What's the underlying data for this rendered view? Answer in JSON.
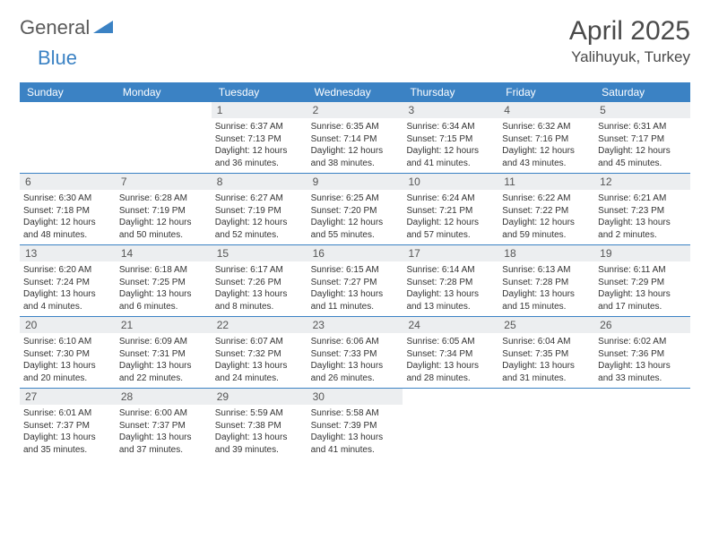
{
  "logo": {
    "word1": "General",
    "word2": "Blue"
  },
  "title": "April 2025",
  "location": "Yalihuyuk, Turkey",
  "colors": {
    "header_bg": "#3b82c4",
    "header_text": "#ffffff",
    "daynum_bg": "#eceef0",
    "border": "#3b82c4",
    "text": "#333333",
    "title_text": "#4a4a4a"
  },
  "day_names": [
    "Sunday",
    "Monday",
    "Tuesday",
    "Wednesday",
    "Thursday",
    "Friday",
    "Saturday"
  ],
  "weeks": [
    [
      null,
      null,
      {
        "n": "1",
        "sr": "6:37 AM",
        "ss": "7:13 PM",
        "dl": "12 hours and 36 minutes."
      },
      {
        "n": "2",
        "sr": "6:35 AM",
        "ss": "7:14 PM",
        "dl": "12 hours and 38 minutes."
      },
      {
        "n": "3",
        "sr": "6:34 AM",
        "ss": "7:15 PM",
        "dl": "12 hours and 41 minutes."
      },
      {
        "n": "4",
        "sr": "6:32 AM",
        "ss": "7:16 PM",
        "dl": "12 hours and 43 minutes."
      },
      {
        "n": "5",
        "sr": "6:31 AM",
        "ss": "7:17 PM",
        "dl": "12 hours and 45 minutes."
      }
    ],
    [
      {
        "n": "6",
        "sr": "6:30 AM",
        "ss": "7:18 PM",
        "dl": "12 hours and 48 minutes."
      },
      {
        "n": "7",
        "sr": "6:28 AM",
        "ss": "7:19 PM",
        "dl": "12 hours and 50 minutes."
      },
      {
        "n": "8",
        "sr": "6:27 AM",
        "ss": "7:19 PM",
        "dl": "12 hours and 52 minutes."
      },
      {
        "n": "9",
        "sr": "6:25 AM",
        "ss": "7:20 PM",
        "dl": "12 hours and 55 minutes."
      },
      {
        "n": "10",
        "sr": "6:24 AM",
        "ss": "7:21 PM",
        "dl": "12 hours and 57 minutes."
      },
      {
        "n": "11",
        "sr": "6:22 AM",
        "ss": "7:22 PM",
        "dl": "12 hours and 59 minutes."
      },
      {
        "n": "12",
        "sr": "6:21 AM",
        "ss": "7:23 PM",
        "dl": "13 hours and 2 minutes."
      }
    ],
    [
      {
        "n": "13",
        "sr": "6:20 AM",
        "ss": "7:24 PM",
        "dl": "13 hours and 4 minutes."
      },
      {
        "n": "14",
        "sr": "6:18 AM",
        "ss": "7:25 PM",
        "dl": "13 hours and 6 minutes."
      },
      {
        "n": "15",
        "sr": "6:17 AM",
        "ss": "7:26 PM",
        "dl": "13 hours and 8 minutes."
      },
      {
        "n": "16",
        "sr": "6:15 AM",
        "ss": "7:27 PM",
        "dl": "13 hours and 11 minutes."
      },
      {
        "n": "17",
        "sr": "6:14 AM",
        "ss": "7:28 PM",
        "dl": "13 hours and 13 minutes."
      },
      {
        "n": "18",
        "sr": "6:13 AM",
        "ss": "7:28 PM",
        "dl": "13 hours and 15 minutes."
      },
      {
        "n": "19",
        "sr": "6:11 AM",
        "ss": "7:29 PM",
        "dl": "13 hours and 17 minutes."
      }
    ],
    [
      {
        "n": "20",
        "sr": "6:10 AM",
        "ss": "7:30 PM",
        "dl": "13 hours and 20 minutes."
      },
      {
        "n": "21",
        "sr": "6:09 AM",
        "ss": "7:31 PM",
        "dl": "13 hours and 22 minutes."
      },
      {
        "n": "22",
        "sr": "6:07 AM",
        "ss": "7:32 PM",
        "dl": "13 hours and 24 minutes."
      },
      {
        "n": "23",
        "sr": "6:06 AM",
        "ss": "7:33 PM",
        "dl": "13 hours and 26 minutes."
      },
      {
        "n": "24",
        "sr": "6:05 AM",
        "ss": "7:34 PM",
        "dl": "13 hours and 28 minutes."
      },
      {
        "n": "25",
        "sr": "6:04 AM",
        "ss": "7:35 PM",
        "dl": "13 hours and 31 minutes."
      },
      {
        "n": "26",
        "sr": "6:02 AM",
        "ss": "7:36 PM",
        "dl": "13 hours and 33 minutes."
      }
    ],
    [
      {
        "n": "27",
        "sr": "6:01 AM",
        "ss": "7:37 PM",
        "dl": "13 hours and 35 minutes."
      },
      {
        "n": "28",
        "sr": "6:00 AM",
        "ss": "7:37 PM",
        "dl": "13 hours and 37 minutes."
      },
      {
        "n": "29",
        "sr": "5:59 AM",
        "ss": "7:38 PM",
        "dl": "13 hours and 39 minutes."
      },
      {
        "n": "30",
        "sr": "5:58 AM",
        "ss": "7:39 PM",
        "dl": "13 hours and 41 minutes."
      },
      null,
      null,
      null
    ]
  ],
  "labels": {
    "sunrise": "Sunrise:",
    "sunset": "Sunset:",
    "daylight": "Daylight:"
  }
}
